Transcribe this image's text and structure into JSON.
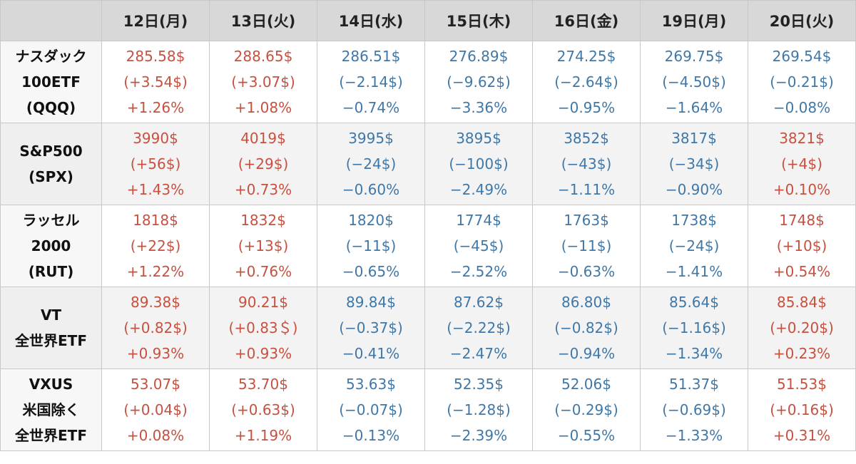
{
  "headers": [
    "",
    "12日(月)",
    "13日(火)",
    "14日(水)",
    "15日(木)",
    "16日(金)",
    "19日(月)",
    "20日(火)"
  ],
  "colors": {
    "up": "#c8503f",
    "down": "#3f78a8",
    "header_bg": "#d8d8d8"
  },
  "rows": [
    {
      "label": [
        "ナスダック",
        "100ETF",
        "(QQQ)"
      ],
      "cells": [
        {
          "price": "285.58$",
          "change": "(+3.54$)",
          "pct": "+1.26%",
          "trend": "up"
        },
        {
          "price": "288.65$",
          "change": "(+3.07$)",
          "pct": "+1.08%",
          "trend": "up"
        },
        {
          "price": "286.51$",
          "change": "(−2.14$)",
          "pct": "−0.74%",
          "trend": "down"
        },
        {
          "price": "276.89$",
          "change": "(−9.62$)",
          "pct": "−3.36%",
          "trend": "down"
        },
        {
          "price": "274.25$",
          "change": "(−2.64$)",
          "pct": "−0.95%",
          "trend": "down"
        },
        {
          "price": "269.75$",
          "change": "(−4.50$)",
          "pct": "−1.64%",
          "trend": "down"
        },
        {
          "price": "269.54$",
          "change": "(−0.21$)",
          "pct": "−0.08%",
          "trend": "down"
        }
      ]
    },
    {
      "label": [
        "S&P500",
        "(SPX)"
      ],
      "cells": [
        {
          "price": "3990$",
          "change": "(+56$)",
          "pct": "+1.43%",
          "trend": "up"
        },
        {
          "price": "4019$",
          "change": "(+29$)",
          "pct": "+0.73%",
          "trend": "up"
        },
        {
          "price": "3995$",
          "change": "(−24$)",
          "pct": "−0.60%",
          "trend": "down"
        },
        {
          "price": "3895$",
          "change": "(−100$)",
          "pct": "−2.49%",
          "trend": "down"
        },
        {
          "price": "3852$",
          "change": "(−43$)",
          "pct": "−1.11%",
          "trend": "down"
        },
        {
          "price": "3817$",
          "change": "(−34$)",
          "pct": "−0.90%",
          "trend": "down"
        },
        {
          "price": "3821$",
          "change": "(+4$)",
          "pct": "+0.10%",
          "trend": "up"
        }
      ]
    },
    {
      "label": [
        "ラッセル",
        "2000",
        "(RUT)"
      ],
      "cells": [
        {
          "price": "1818$",
          "change": "(+22$)",
          "pct": "+1.22%",
          "trend": "up"
        },
        {
          "price": "1832$",
          "change": "(+13$)",
          "pct": "+0.76%",
          "trend": "up"
        },
        {
          "price": "1820$",
          "change": "(−11$)",
          "pct": "−0.65%",
          "trend": "down"
        },
        {
          "price": "1774$",
          "change": "(−45$)",
          "pct": "−2.52%",
          "trend": "down"
        },
        {
          "price": "1763$",
          "change": "(−11$)",
          "pct": "−0.63%",
          "trend": "down"
        },
        {
          "price": "1738$",
          "change": "(−24$)",
          "pct": "−1.41%",
          "trend": "down"
        },
        {
          "price": "1748$",
          "change": "(+10$)",
          "pct": "+0.54%",
          "trend": "up"
        }
      ]
    },
    {
      "label": [
        "VT",
        "全世界ETF"
      ],
      "cells": [
        {
          "price": "89.38$",
          "change": "(+0.82$)",
          "pct": "+0.93%",
          "trend": "up"
        },
        {
          "price": "90.21$",
          "change": "(+0.83＄)",
          "pct": "+0.93%",
          "trend": "up"
        },
        {
          "price": "89.84$",
          "change": "(−0.37$)",
          "pct": "−0.41%",
          "trend": "down"
        },
        {
          "price": "87.62$",
          "change": "(−2.22$)",
          "pct": "−2.47%",
          "trend": "down"
        },
        {
          "price": "86.80$",
          "change": "(−0.82$)",
          "pct": "−0.94%",
          "trend": "down"
        },
        {
          "price": "85.64$",
          "change": "(−1.16$)",
          "pct": "−1.34%",
          "trend": "down"
        },
        {
          "price": "85.84$",
          "change": "(+0.20$)",
          "pct": "+0.23%",
          "trend": "up"
        }
      ]
    },
    {
      "label": [
        "VXUS",
        "米国除く",
        "全世界ETF"
      ],
      "cells": [
        {
          "price": "53.07$",
          "change": "(+0.04$)",
          "pct": "+0.08%",
          "trend": "up"
        },
        {
          "price": "53.70$",
          "change": "(+0.63$)",
          "pct": "+1.19%",
          "trend": "up"
        },
        {
          "price": "53.63$",
          "change": "(−0.07$)",
          "pct": "−0.13%",
          "trend": "down"
        },
        {
          "price": "52.35$",
          "change": "(−1.28$)",
          "pct": "−2.39%",
          "trend": "down"
        },
        {
          "price": "52.06$",
          "change": "(−0.29$)",
          "pct": "−0.55%",
          "trend": "down"
        },
        {
          "price": "51.37$",
          "change": "(−0.69$)",
          "pct": "−1.33%",
          "trend": "down"
        },
        {
          "price": "51.53$",
          "change": "(+0.16$)",
          "pct": "+0.31%",
          "trend": "up"
        }
      ]
    }
  ]
}
